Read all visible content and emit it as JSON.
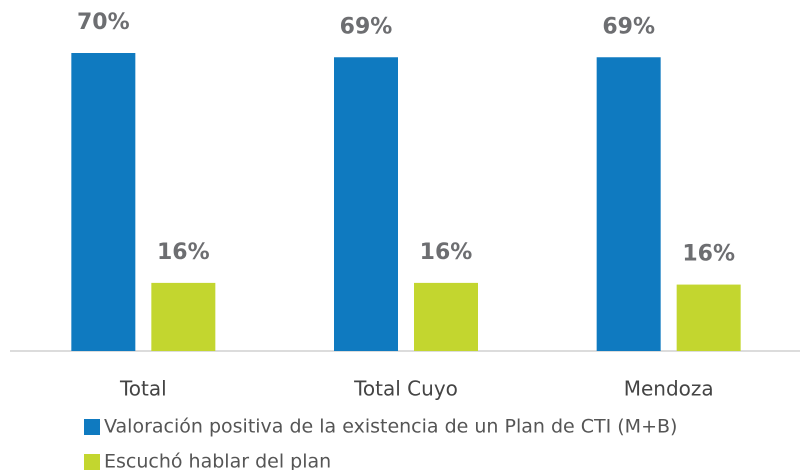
{
  "chart_data": {
    "type": "bar",
    "categories": [
      "Total",
      "Total Cuyo",
      "Mendoza"
    ],
    "series": [
      {
        "name": "Valoración positiva de la existencia de un Plan de CTI (M+B)",
        "color": "#0f7ac0",
        "values": [
          70,
          69,
          69
        ],
        "value_labels": [
          "70%",
          "69%",
          "69%"
        ]
      },
      {
        "name": "Escuchó hablar del plan",
        "color": "#c3d62f",
        "values": [
          16,
          16,
          15.6
        ],
        "value_labels": [
          "16%",
          "16%",
          "16%"
        ]
      }
    ],
    "ylim": [
      0,
      70
    ]
  }
}
